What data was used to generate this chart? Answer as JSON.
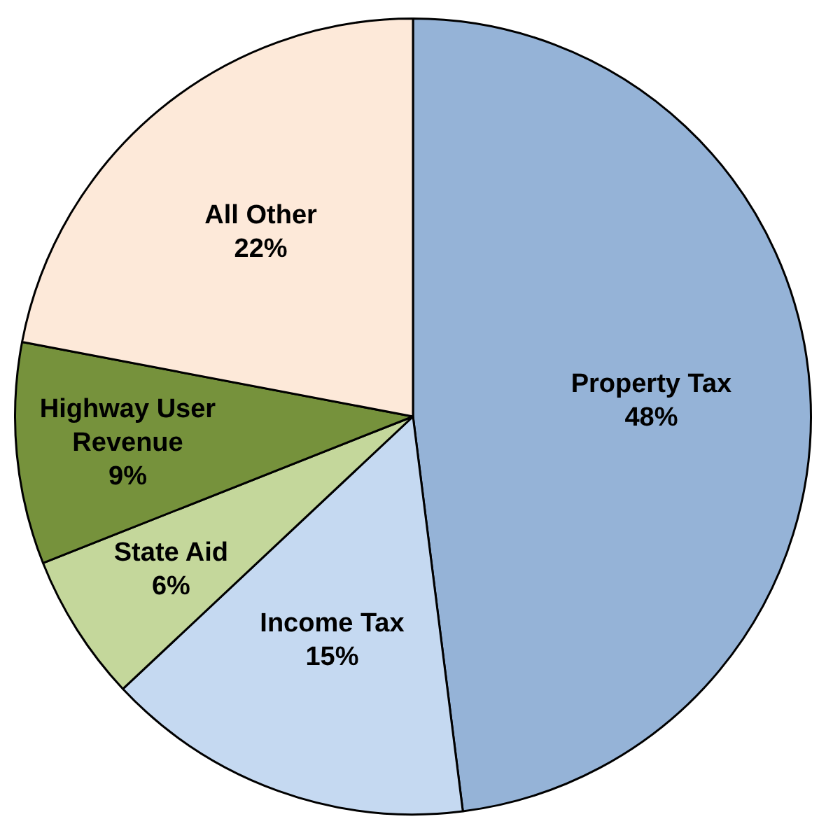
{
  "chart_data": {
    "type": "pie",
    "categories": [
      "Property Tax",
      "Income Tax",
      "State Aid",
      "Highway User Revenue",
      "All Other"
    ],
    "values": [
      48,
      15,
      6,
      9,
      22
    ],
    "value_labels": [
      "48%",
      "15%",
      "6%",
      "9%",
      "22%"
    ],
    "colors": [
      "#95b3d7",
      "#c5d9f1",
      "#c4d79b",
      "#76923c",
      "#fde9d9"
    ],
    "legend": false
  }
}
